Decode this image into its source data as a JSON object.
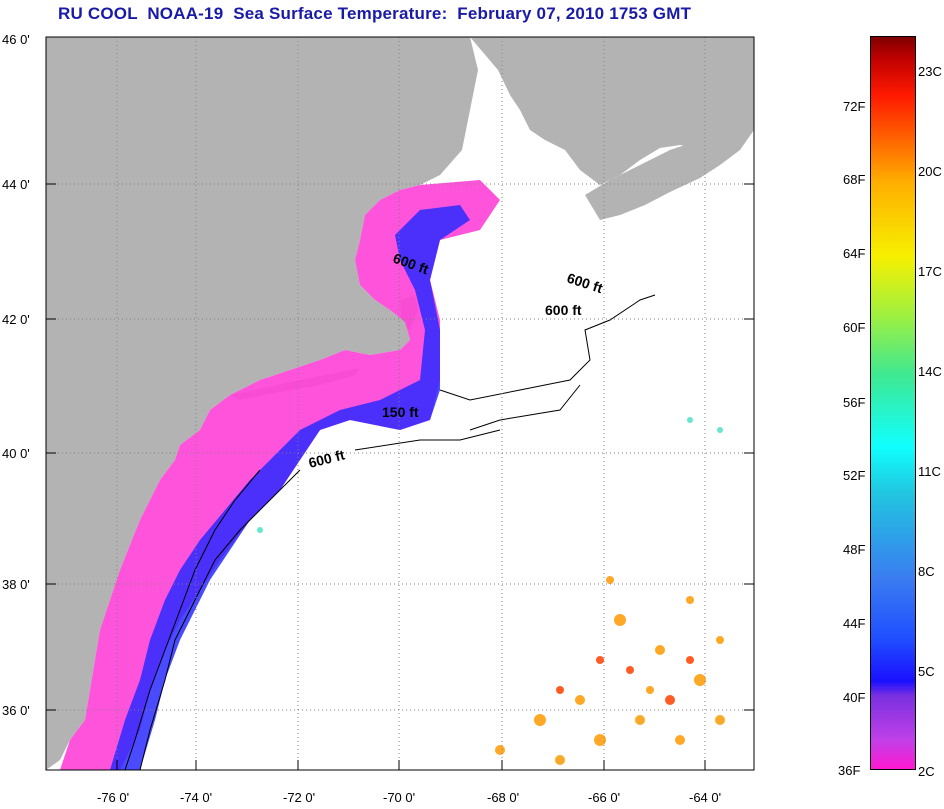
{
  "title": "RU COOL  NOAA-19  Sea Surface Temperature:  February 07, 2010 1753 GMT",
  "map": {
    "lat_labels": [
      "46 0'",
      "44 0'",
      "42 0'",
      "40 0'",
      "38 0'",
      "36 0'"
    ],
    "lon_labels": [
      "-76 0'",
      "-74 0'",
      "-72 0'",
      "-70 0'",
      "-68 0'",
      "-66 0'",
      "-64 0'"
    ],
    "contour_labels": [
      "600 ft",
      "600 ft",
      "600 ft",
      "150 ft",
      "600 ft"
    ],
    "colors": {
      "land": "#b3b3b3",
      "ocean": "#ffffff",
      "grid": "#808080"
    }
  },
  "colorbar": {
    "fahrenheit_labels": [
      "72F",
      "68F",
      "64F",
      "60F",
      "56F",
      "52F",
      "48F",
      "44F",
      "40F",
      "36F"
    ],
    "celsius_labels": [
      "23C",
      "20C",
      "17C",
      "14C",
      "11C",
      "8C",
      "5C",
      "2C"
    ]
  }
}
